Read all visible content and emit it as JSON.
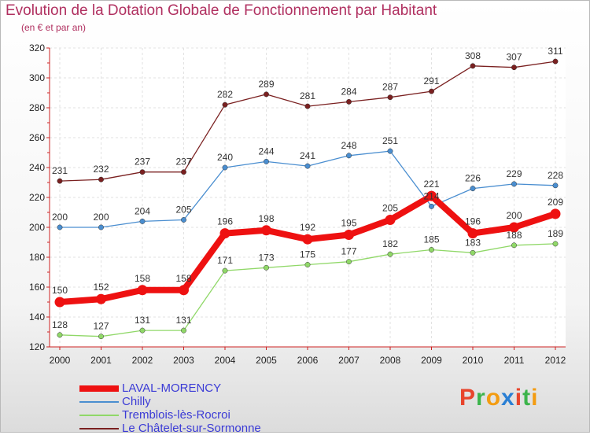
{
  "title": "Evolution de la Dotation Globale de Fonctionnement par Habitant",
  "subtitle": "(en € et par an)",
  "brand": [
    "P",
    "r",
    "o",
    "x",
    "i",
    "t",
    "i"
  ],
  "brand_colors": [
    "#e8452c",
    "#3cb44b",
    "#f39c12",
    "#2a7fd4",
    "#e8452c",
    "#3cb44b",
    "#f39c12"
  ],
  "chart_data": {
    "type": "line",
    "title": "Evolution de la Dotation Globale de Fonctionnement par Habitant",
    "ylabel": "(en € et par an)",
    "x": [
      "2000",
      "2001",
      "2002",
      "2003",
      "2004",
      "2005",
      "2006",
      "2007",
      "2008",
      "2009",
      "2010",
      "2011",
      "2012"
    ],
    "ylim": [
      120,
      320
    ],
    "yticks": [
      "120",
      "140",
      "160",
      "180",
      "200",
      "220",
      "240",
      "260",
      "280",
      "300",
      "320"
    ],
    "grid": true,
    "legend_position": "bottom-left",
    "series": [
      {
        "name": "LAVAL-MORENCY",
        "color": "#ee1111",
        "values": [
          150,
          152,
          158,
          158,
          196,
          198,
          192,
          195,
          205,
          221,
          196,
          200,
          209
        ],
        "labels": [
          "150",
          "152",
          "158",
          "158",
          "196",
          "198",
          "192",
          "195",
          "205",
          "221",
          "196",
          "200",
          "209"
        ]
      },
      {
        "name": "Chilly",
        "color": "#4a8ed0",
        "values": [
          200,
          200,
          204,
          205,
          240,
          244,
          241,
          248,
          251,
          214,
          226,
          229,
          228
        ],
        "labels": [
          "200",
          "200",
          "204",
          "205",
          "240",
          "244",
          "241",
          "248",
          "251",
          "214",
          "226",
          "229",
          "228"
        ]
      },
      {
        "name": "Tremblois-lès-Rocroi",
        "color": "#90d868",
        "values": [
          128,
          127,
          131,
          131,
          171,
          173,
          175,
          177,
          182,
          185,
          183,
          188,
          189
        ],
        "labels": [
          "128",
          "127",
          "131",
          "131",
          "171",
          "173",
          "175",
          "177",
          "182",
          "185",
          "183",
          "188",
          "189"
        ]
      },
      {
        "name": "Le Châtelet-sur-Sormonne",
        "color": "#7a2020",
        "values": [
          231,
          232,
          237,
          237,
          282,
          289,
          281,
          284,
          287,
          291,
          308,
          307,
          311
        ],
        "labels": [
          "231",
          "232",
          "237",
          "237",
          "282",
          "289",
          "281",
          "284",
          "287",
          "291",
          "308",
          "307",
          "311"
        ]
      }
    ]
  }
}
